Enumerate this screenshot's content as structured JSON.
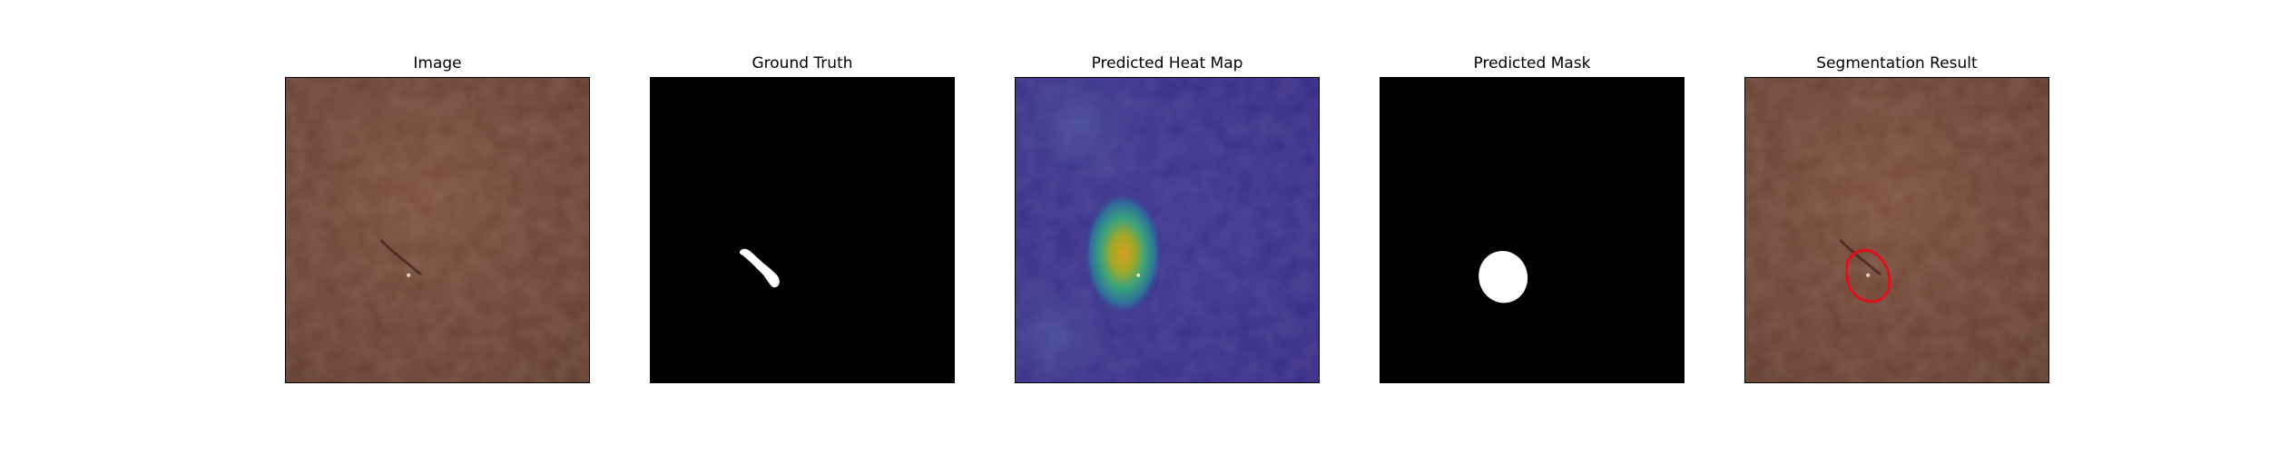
{
  "panels": [
    {
      "title": "Image"
    },
    {
      "title": "Ground Truth"
    },
    {
      "title": "Predicted Heat Map"
    },
    {
      "title": "Predicted Mask"
    },
    {
      "title": "Segmentation Result"
    }
  ],
  "colors": {
    "leather": "#74493a",
    "leather_dark": "#5e3a2e",
    "mask_background": "#000000",
    "mask_foreground": "#ffffff",
    "heatmap_base": "#3a2f8a",
    "heatmap_hot": "#e0a81a",
    "contour": "#e0101a"
  }
}
